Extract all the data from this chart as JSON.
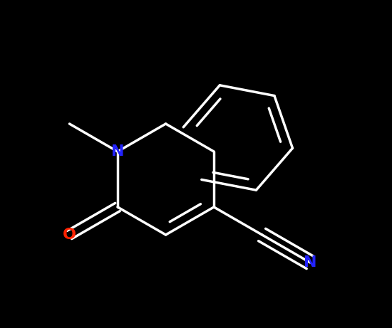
{
  "background_color": "#000000",
  "bond_color": "#ffffff",
  "N_color": "#2222ff",
  "O_color": "#ff2200",
  "lw": 2.5,
  "figsize": [
    5.5,
    4.61
  ],
  "dpi": 100,
  "font_size": 16
}
